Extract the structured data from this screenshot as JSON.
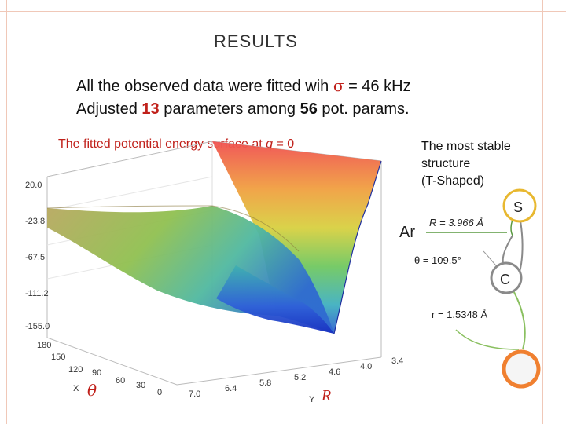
{
  "slide": {
    "title": "RESULTS",
    "line1_prefix": "All the observed data were fitted wih ",
    "sigma_symbol": "σ",
    "line1_suffix": " = 46 kHz",
    "line2_a": "Adjusted ",
    "line2_num1": "13",
    "line2_b": " parameters among ",
    "line2_num2": "56",
    "line2_c": " pot. params.",
    "plot_caption_a": "The fitted potential energy surface at ",
    "plot_caption_q": "q",
    "plot_caption_b": " = 0",
    "stable_1": "The most stable",
    "stable_2": "structure",
    "stable_3": "(T-Shaped)"
  },
  "surface": {
    "z_ticks": [
      "20.0",
      "-23.8",
      "-67.5",
      "-111.2",
      "-155.0"
    ],
    "theta_ticks": [
      "180",
      "150",
      "120",
      "90",
      "60",
      "30",
      "0"
    ],
    "r_ticks": [
      "7.0",
      "6.4",
      "5.8",
      "5.2",
      "4.6",
      "4.0",
      "3.4"
    ],
    "x_axis_letter": "X",
    "y_axis_letter": "Y",
    "theta_symbol": "θ",
    "r_symbol": "R"
  },
  "molecule": {
    "ar_label": "Ar",
    "s_label": "S",
    "c_label": "C",
    "R_text": "R = 3.966 Å",
    "theta_text": "θ = 109.5°",
    "r_text": "r = 1.5348 Å",
    "colors": {
      "sulfur": "#e8b830",
      "carbon": "#8a8a8a",
      "argon": "#5a9a40",
      "nitrogen": "#f08030"
    }
  }
}
